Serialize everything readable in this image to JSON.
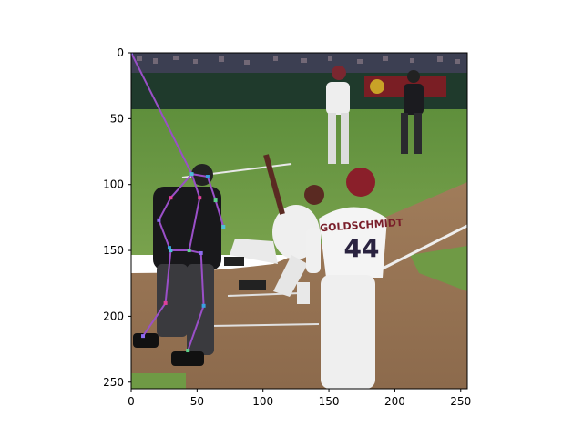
{
  "chart_data": {
    "type": "image",
    "xlim": [
      0,
      255
    ],
    "ylim": [
      255,
      0
    ],
    "x_ticks": [
      0,
      50,
      100,
      150,
      200,
      250
    ],
    "y_ticks": [
      0,
      50,
      100,
      150,
      200,
      250
    ],
    "x_tick_labels": [
      "0",
      "50",
      "100",
      "150",
      "200",
      "250"
    ],
    "y_tick_labels": [
      "0",
      "50",
      "100",
      "150",
      "200",
      "250"
    ],
    "title": "",
    "xlabel": "",
    "ylabel": "",
    "grid": false,
    "image_content": {
      "jersey_text": "GOLDSCHMIDT",
      "jersey_number": "44"
    },
    "pose": {
      "color": "#9a4fc8",
      "keypoints": [
        {
          "name": "head_top",
          "x": 0,
          "y": 0
        },
        {
          "name": "upper_neck",
          "x": 46,
          "y": 92
        },
        {
          "name": "left_shoulder",
          "x": 58,
          "y": 94
        },
        {
          "name": "right_shoulder",
          "x": 30,
          "y": 110
        },
        {
          "name": "left_elbow",
          "x": 64,
          "y": 112
        },
        {
          "name": "right_elbow",
          "x": 21,
          "y": 127
        },
        {
          "name": "left_wrist",
          "x": 70,
          "y": 132
        },
        {
          "name": "right_wrist",
          "x": 29,
          "y": 148
        },
        {
          "name": "thorax",
          "x": 52,
          "y": 110
        },
        {
          "name": "pelvis",
          "x": 44,
          "y": 150
        },
        {
          "name": "left_hip",
          "x": 53,
          "y": 152
        },
        {
          "name": "right_hip",
          "x": 30,
          "y": 150
        },
        {
          "name": "left_knee",
          "x": 55,
          "y": 192
        },
        {
          "name": "right_knee",
          "x": 26,
          "y": 190
        },
        {
          "name": "left_ankle",
          "x": 43,
          "y": 226
        },
        {
          "name": "right_ankle",
          "x": 9,
          "y": 215
        }
      ],
      "limbs": [
        [
          "head_top",
          "upper_neck"
        ],
        [
          "upper_neck",
          "thorax"
        ],
        [
          "upper_neck",
          "left_shoulder"
        ],
        [
          "upper_neck",
          "right_shoulder"
        ],
        [
          "left_shoulder",
          "left_elbow"
        ],
        [
          "left_elbow",
          "left_wrist"
        ],
        [
          "right_shoulder",
          "right_elbow"
        ],
        [
          "right_elbow",
          "right_wrist"
        ],
        [
          "thorax",
          "pelvis"
        ],
        [
          "pelvis",
          "left_hip"
        ],
        [
          "pelvis",
          "right_hip"
        ],
        [
          "left_hip",
          "left_knee"
        ],
        [
          "left_knee",
          "left_ankle"
        ],
        [
          "right_hip",
          "right_knee"
        ],
        [
          "right_knee",
          "right_ankle"
        ]
      ]
    }
  }
}
